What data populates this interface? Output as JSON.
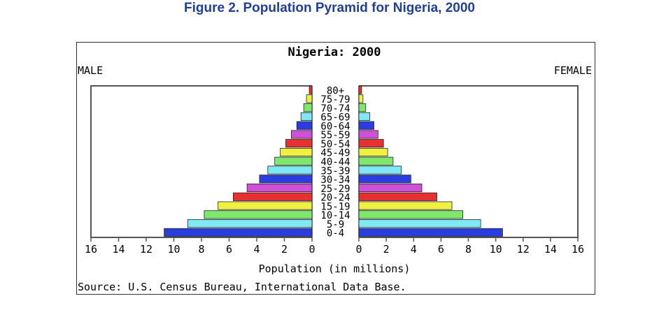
{
  "figure_title": "Figure 2. Population Pyramid for Nigeria, 2000",
  "chart_data": {
    "type": "bar",
    "title": "Nigeria: 2000",
    "left_label": "MALE",
    "right_label": "FEMALE",
    "xlabel": "Population (in millions)",
    "source": "Source: U.S. Census Bureau, International Data Base.",
    "xlim": [
      0,
      16
    ],
    "ticks": [
      "16",
      "14",
      "12",
      "10",
      "8",
      "6",
      "4",
      "2",
      "0"
    ],
    "ticks_right": [
      "0",
      "2",
      "4",
      "6",
      "8",
      "10",
      "12",
      "14",
      "16"
    ],
    "categories": [
      "0-4",
      "5-9",
      "10-14",
      "15-19",
      "20-24",
      "25-29",
      "30-34",
      "35-39",
      "40-44",
      "45-49",
      "50-54",
      "55-59",
      "60-64",
      "65-69",
      "70-74",
      "75-79",
      "80+"
    ],
    "series": [
      {
        "name": "MALE",
        "values": [
          10.7,
          9.0,
          7.8,
          6.8,
          5.7,
          4.7,
          3.8,
          3.2,
          2.7,
          2.3,
          1.9,
          1.5,
          1.1,
          0.8,
          0.6,
          0.4,
          0.2
        ]
      },
      {
        "name": "FEMALE",
        "values": [
          10.5,
          8.9,
          7.6,
          6.8,
          5.7,
          4.6,
          3.8,
          3.1,
          2.5,
          2.1,
          1.8,
          1.4,
          1.1,
          0.8,
          0.5,
          0.3,
          0.2
        ]
      }
    ],
    "bar_colors": [
      "#2a3ee0",
      "#7ee8f5",
      "#7ee86c",
      "#f0f040",
      "#e83030",
      "#d050d8",
      "#2a3ee0",
      "#7ee8f5",
      "#7ee86c",
      "#f0f040",
      "#e83030",
      "#d050d8",
      "#2a3ee0",
      "#7ee8f5",
      "#7ee86c",
      "#f0f040",
      "#e83030"
    ]
  }
}
